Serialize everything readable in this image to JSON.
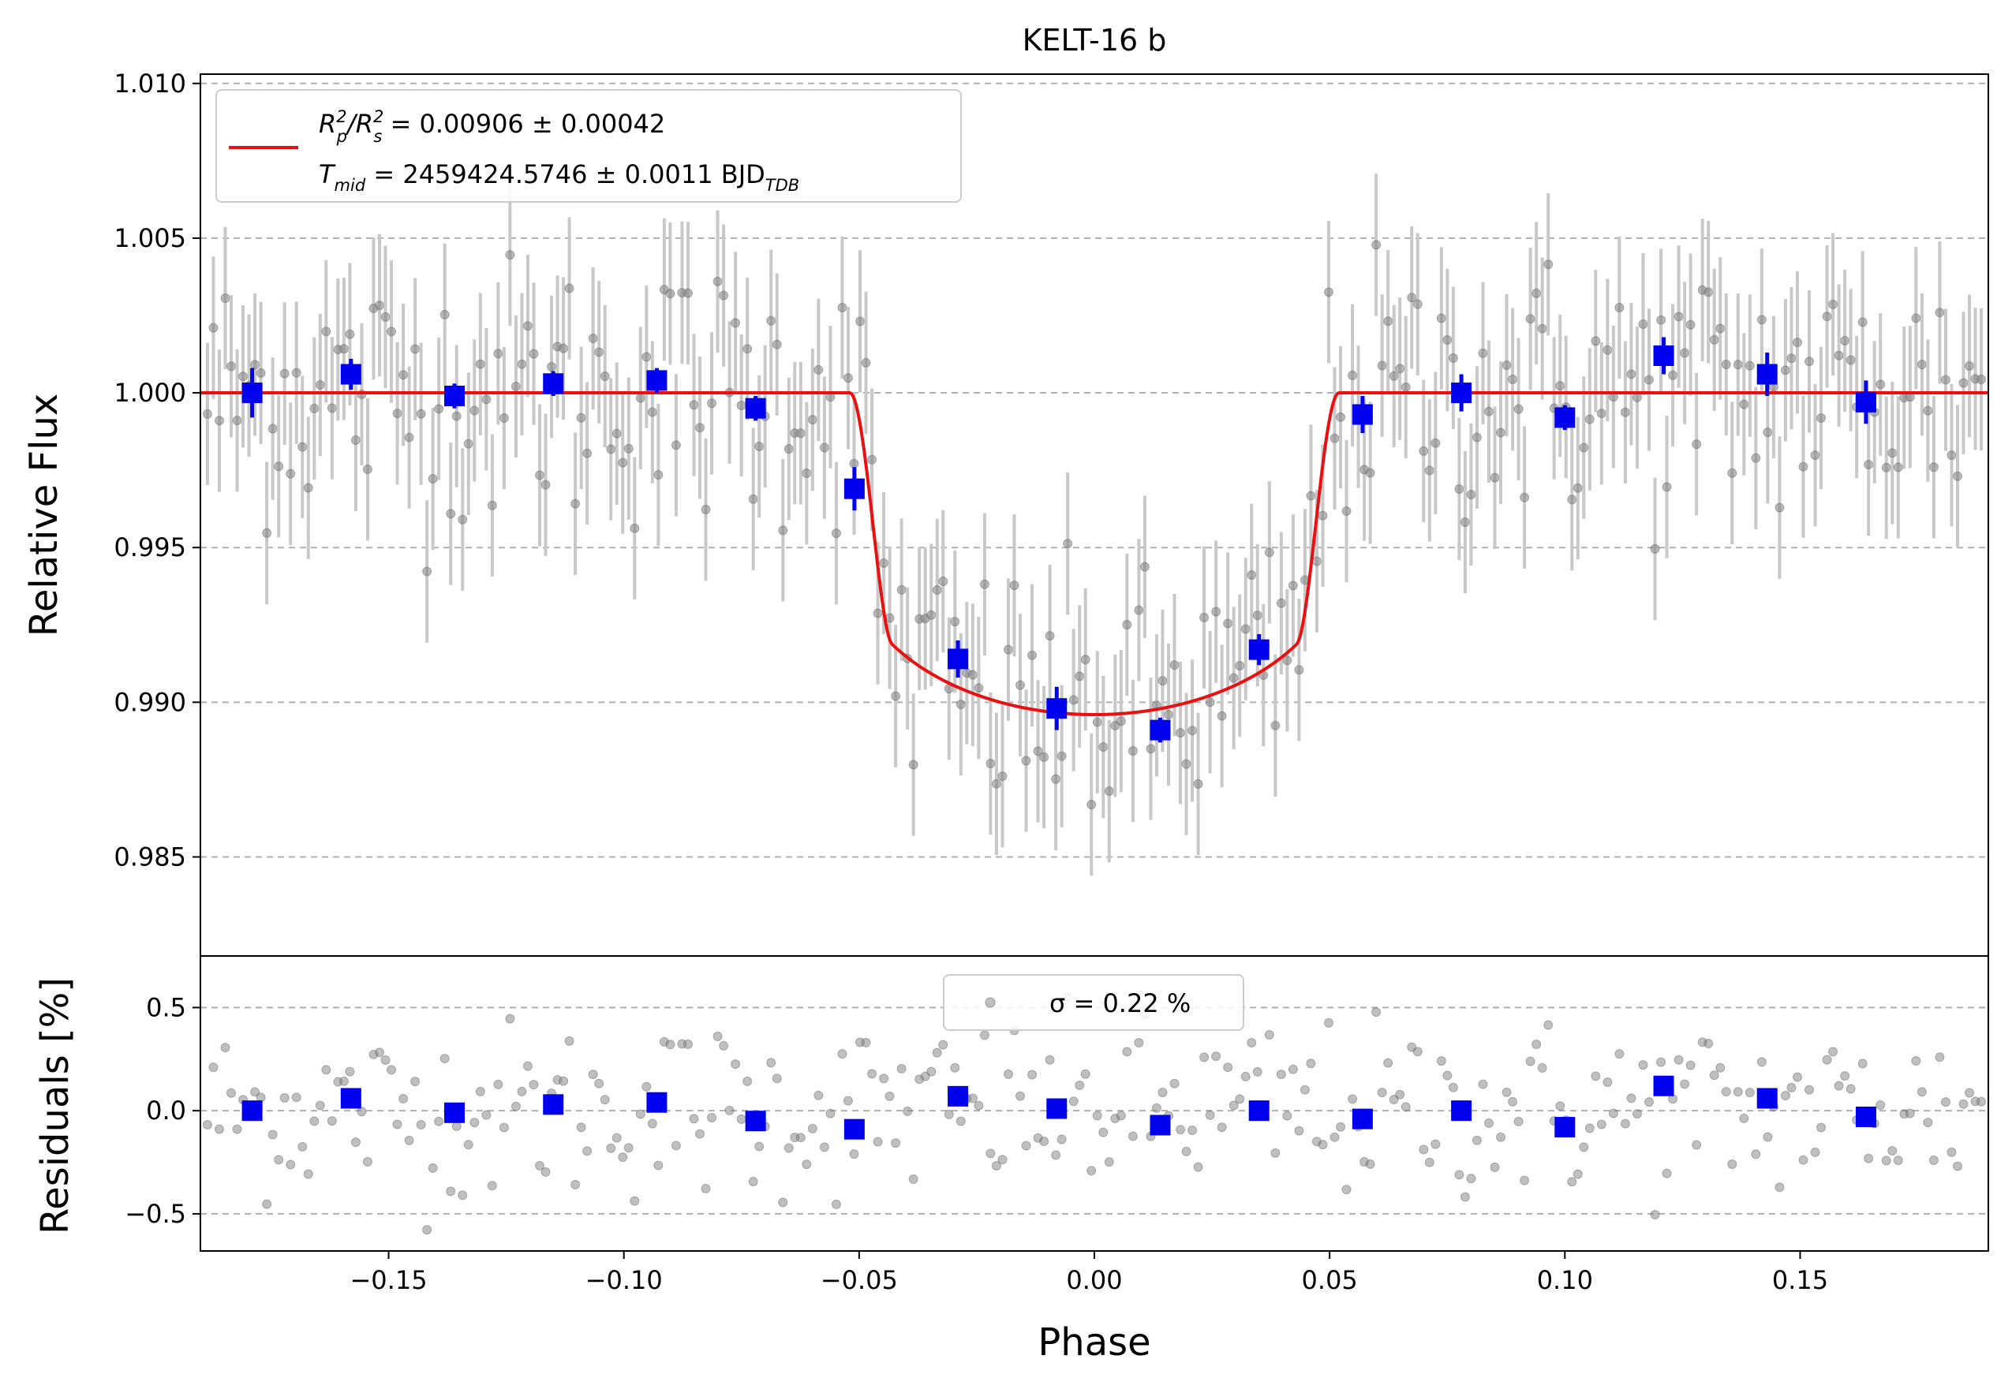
{
  "chart_data": [
    {
      "type": "scatter",
      "title": "KELT-16 b",
      "xlabel": "",
      "ylabel": "Relative Flux",
      "xlim": [
        -0.19,
        0.19
      ],
      "ylim": [
        0.9818,
        1.0103
      ],
      "yticks": [
        1.01,
        1.005,
        1.0,
        0.995,
        0.99,
        0.985
      ],
      "ytick_labels": [
        "1.010",
        "1.005",
        "1.000",
        "0.995",
        "0.990",
        "0.985"
      ],
      "grid": "horizontal dashed",
      "legend": {
        "position": "top-left",
        "line1": {
          "r": "R",
          "p": "p",
          "sq": "2",
          "slash": "/",
          "s": "s",
          "eq": " = 0.00906 ± 0.00042"
        },
        "line2": {
          "t": "T",
          "mid": "mid",
          "eq": " = 2459424.5746 ± 0.0011 BJD",
          "tdb": "TDB"
        }
      },
      "model": {
        "color": "#e81010",
        "baseline": 1.0,
        "depth": 0.0104,
        "t1": 0.052,
        "t2": 0.043,
        "limb": 0.5
      },
      "binned": {
        "color": "#0000ee",
        "x": [
          -0.179,
          -0.158,
          -0.136,
          -0.115,
          -0.093,
          -0.072,
          -0.051,
          -0.029,
          -0.008,
          0.014,
          0.035,
          0.057,
          0.078,
          0.1,
          0.121,
          0.143,
          0.164
        ],
        "y": [
          1.0,
          1.0006,
          0.9999,
          1.0003,
          1.0004,
          0.9995,
          0.9969,
          0.9914,
          0.9898,
          0.9891,
          0.9917,
          0.9993,
          1.0,
          0.9992,
          1.0012,
          1.0006,
          0.9997
        ],
        "yerr": [
          0.0008,
          0.0005,
          0.0004,
          0.0004,
          0.0004,
          0.0004,
          0.0007,
          0.0006,
          0.0007,
          0.0004,
          0.0005,
          0.0006,
          0.0006,
          0.0004,
          0.0006,
          0.0007,
          0.0007
        ]
      },
      "raw": {
        "color": "#808080",
        "errorbar_color": "#c8c8c8",
        "n_points": 300,
        "x_start": -0.1885,
        "x_end": 0.1885,
        "yerr": 0.0023,
        "scatter_sigma_percent": 0.22
      }
    },
    {
      "type": "scatter",
      "title": "",
      "xlabel": "Phase",
      "ylabel": "Residuals [%]",
      "xlim": [
        -0.19,
        0.19
      ],
      "ylim": [
        -0.68,
        0.75
      ],
      "yticks": [
        0.5,
        0.0,
        -0.5
      ],
      "ytick_labels": [
        "0.5",
        "0.0",
        "−0.5"
      ],
      "xticks": [
        -0.15,
        -0.1,
        -0.05,
        0.0,
        0.05,
        0.1,
        0.15
      ],
      "xtick_labels": [
        "−0.15",
        "−0.10",
        "−0.05",
        "0.00",
        "0.05",
        "0.10",
        "0.15"
      ],
      "grid": "horizontal dashed",
      "legend": {
        "position": "top-center",
        "label": "σ = 0.22 %"
      },
      "binned": {
        "color": "#0000ee",
        "x": [
          -0.179,
          -0.158,
          -0.136,
          -0.115,
          -0.093,
          -0.072,
          -0.051,
          -0.029,
          -0.008,
          0.014,
          0.035,
          0.057,
          0.078,
          0.1,
          0.121,
          0.143,
          0.164
        ],
        "y": [
          0.0,
          0.06,
          -0.01,
          0.03,
          0.04,
          -0.05,
          -0.09,
          0.07,
          0.01,
          -0.07,
          0.0,
          -0.04,
          0.0,
          -0.08,
          0.12,
          0.06,
          -0.03
        ]
      }
    }
  ]
}
